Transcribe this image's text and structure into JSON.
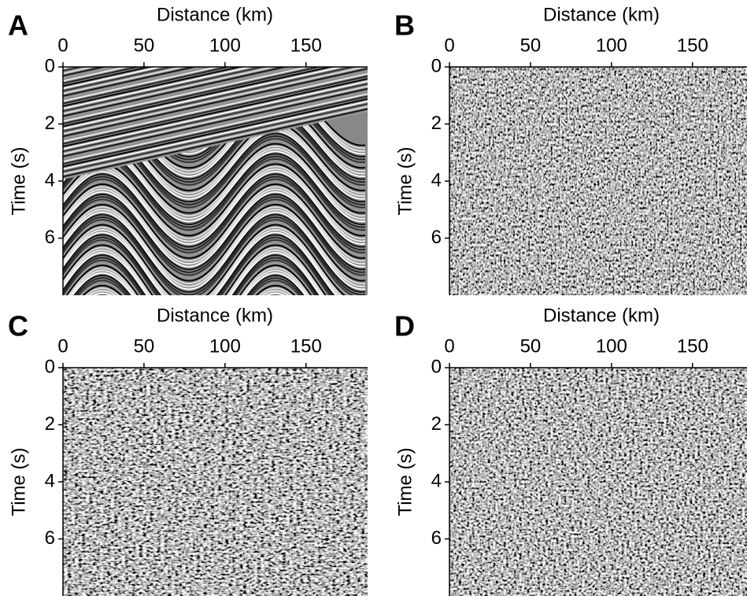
{
  "chart_data": [
    {
      "type": "image",
      "label": "A",
      "xlabel": "Distance (km)",
      "ylabel": "Time (s)",
      "xlim": [
        0,
        188
      ],
      "ylim": [
        0,
        8
      ],
      "xticks": [
        0,
        50,
        100,
        150
      ],
      "yticks": [
        0,
        2,
        4,
        6
      ]
    },
    {
      "type": "image",
      "label": "B",
      "xlabel": "Distance (km)",
      "ylabel": "Time (s)",
      "xlim": [
        0,
        188
      ],
      "ylim": [
        0,
        8
      ],
      "xticks": [
        0,
        50,
        100,
        150
      ],
      "yticks": [
        0,
        2,
        4,
        6
      ]
    },
    {
      "type": "image",
      "label": "C",
      "xlabel": "Distance (km)",
      "ylabel": "Time (s)",
      "xlim": [
        0,
        188
      ],
      "ylim": [
        0,
        8
      ],
      "xticks": [
        0,
        50,
        100,
        150
      ],
      "yticks": [
        0,
        2,
        4,
        6
      ]
    },
    {
      "type": "image",
      "label": "D",
      "xlabel": "Distance (km)",
      "ylabel": "Time (s)",
      "xlim": [
        0,
        188
      ],
      "ylim": [
        0,
        8
      ],
      "xticks": [
        0,
        50,
        100,
        150
      ],
      "yticks": [
        0,
        2,
        4,
        6
      ]
    }
  ]
}
